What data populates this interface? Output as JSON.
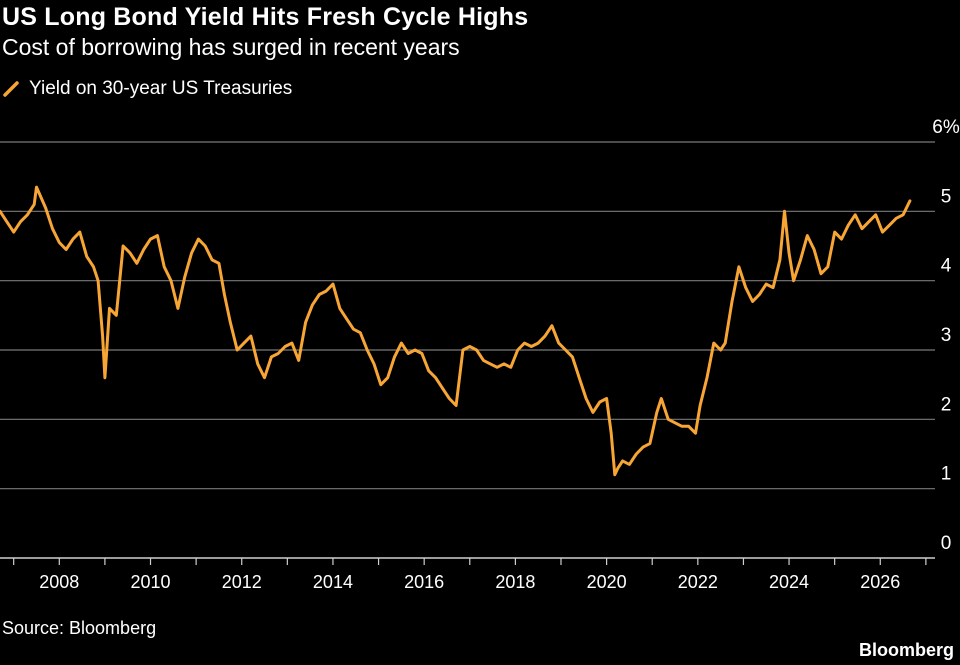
{
  "header": {
    "title": "US Long Bond Yield Hits Fresh Cycle Highs",
    "subtitle": "Cost of borrowing has surged in recent years"
  },
  "footer": {
    "source": "Source: Bloomberg",
    "brand": "Bloomberg"
  },
  "colors": {
    "background": "#000000",
    "series": "#f7a535",
    "grid": "#7a7a7a",
    "text": "#ffffff"
  },
  "chart_data": {
    "type": "line",
    "title": "US Long Bond Yield Hits Fresh Cycle Highs",
    "subtitle": "Cost of borrowing has surged in recent years",
    "xlabel": "",
    "ylabel": "",
    "xlim": [
      2006.7,
      2027.2
    ],
    "ylim": [
      0,
      6
    ],
    "y_ticks": [
      0,
      1,
      2,
      3,
      4,
      5,
      6
    ],
    "y_tick_labels": [
      "0",
      "1",
      "2",
      "3",
      "4",
      "5",
      "6%"
    ],
    "x_ticks": [
      2008,
      2010,
      2012,
      2014,
      2016,
      2018,
      2020,
      2022,
      2024,
      2026
    ],
    "x_tick_labels": [
      "2008",
      "2010",
      "2012",
      "2014",
      "2016",
      "2018",
      "2020",
      "2022",
      "2024",
      "2026"
    ],
    "grid": true,
    "legend_position": "top-left",
    "series": [
      {
        "name": "Yield on 30-year US Treasuries",
        "x": [
          2006.7,
          2006.85,
          2007.0,
          2007.15,
          2007.3,
          2007.45,
          2007.5,
          2007.7,
          2007.85,
          2008.0,
          2008.15,
          2008.3,
          2008.45,
          2008.6,
          2008.75,
          2008.85,
          2008.95,
          2009.0,
          2009.1,
          2009.25,
          2009.4,
          2009.55,
          2009.7,
          2009.85,
          2010.0,
          2010.15,
          2010.3,
          2010.45,
          2010.6,
          2010.75,
          2010.9,
          2011.05,
          2011.2,
          2011.35,
          2011.5,
          2011.62,
          2011.75,
          2011.9,
          2012.05,
          2012.2,
          2012.35,
          2012.5,
          2012.65,
          2012.8,
          2012.95,
          2013.1,
          2013.25,
          2013.4,
          2013.55,
          2013.7,
          2013.85,
          2014.0,
          2014.15,
          2014.3,
          2014.45,
          2014.6,
          2014.75,
          2014.9,
          2015.05,
          2015.2,
          2015.35,
          2015.5,
          2015.65,
          2015.8,
          2015.95,
          2016.1,
          2016.25,
          2016.4,
          2016.55,
          2016.7,
          2016.85,
          2017.0,
          2017.15,
          2017.3,
          2017.45,
          2017.6,
          2017.75,
          2017.9,
          2018.05,
          2018.2,
          2018.35,
          2018.5,
          2018.65,
          2018.8,
          2018.95,
          2019.1,
          2019.25,
          2019.4,
          2019.55,
          2019.7,
          2019.85,
          2020.0,
          2020.1,
          2020.18,
          2020.25,
          2020.35,
          2020.5,
          2020.65,
          2020.8,
          2020.95,
          2021.1,
          2021.2,
          2021.35,
          2021.5,
          2021.65,
          2021.8,
          2021.95,
          2022.05,
          2022.2,
          2022.35,
          2022.5,
          2022.6,
          2022.75,
          2022.9,
          2023.05,
          2023.2,
          2023.35,
          2023.5,
          2023.65,
          2023.8,
          2023.9,
          2024.0,
          2024.1,
          2024.25,
          2024.4,
          2024.55,
          2024.7,
          2024.85,
          2025.0,
          2025.15,
          2025.3,
          2025.45,
          2025.6,
          2025.75,
          2025.9,
          2026.05,
          2026.2,
          2026.35,
          2026.5,
          2026.65
        ],
        "values": [
          5.0,
          4.85,
          4.7,
          4.85,
          4.95,
          5.1,
          5.35,
          5.05,
          4.75,
          4.55,
          4.45,
          4.6,
          4.7,
          4.35,
          4.2,
          4.0,
          3.2,
          2.6,
          3.6,
          3.5,
          4.5,
          4.4,
          4.25,
          4.45,
          4.6,
          4.65,
          4.2,
          4.0,
          3.6,
          4.05,
          4.4,
          4.6,
          4.5,
          4.3,
          4.25,
          3.8,
          3.4,
          3.0,
          3.1,
          3.2,
          2.8,
          2.6,
          2.9,
          2.95,
          3.05,
          3.1,
          2.85,
          3.4,
          3.65,
          3.8,
          3.85,
          3.95,
          3.6,
          3.45,
          3.3,
          3.25,
          3.0,
          2.8,
          2.5,
          2.6,
          2.9,
          3.1,
          2.95,
          3.0,
          2.95,
          2.7,
          2.6,
          2.45,
          2.3,
          2.2,
          3.0,
          3.05,
          3.0,
          2.85,
          2.8,
          2.75,
          2.8,
          2.75,
          3.0,
          3.1,
          3.05,
          3.1,
          3.2,
          3.35,
          3.1,
          3.0,
          2.9,
          2.6,
          2.3,
          2.1,
          2.25,
          2.3,
          1.8,
          1.2,
          1.3,
          1.4,
          1.35,
          1.5,
          1.6,
          1.65,
          2.1,
          2.3,
          2.0,
          1.95,
          1.9,
          1.9,
          1.8,
          2.2,
          2.6,
          3.1,
          3.0,
          3.1,
          3.7,
          4.2,
          3.9,
          3.7,
          3.8,
          3.95,
          3.9,
          4.3,
          5.0,
          4.4,
          4.0,
          4.3,
          4.65,
          4.45,
          4.1,
          4.2,
          4.7,
          4.6,
          4.8,
          4.95,
          4.75,
          4.85,
          4.95,
          4.7,
          4.8,
          4.9,
          4.95,
          5.15
        ]
      }
    ]
  }
}
